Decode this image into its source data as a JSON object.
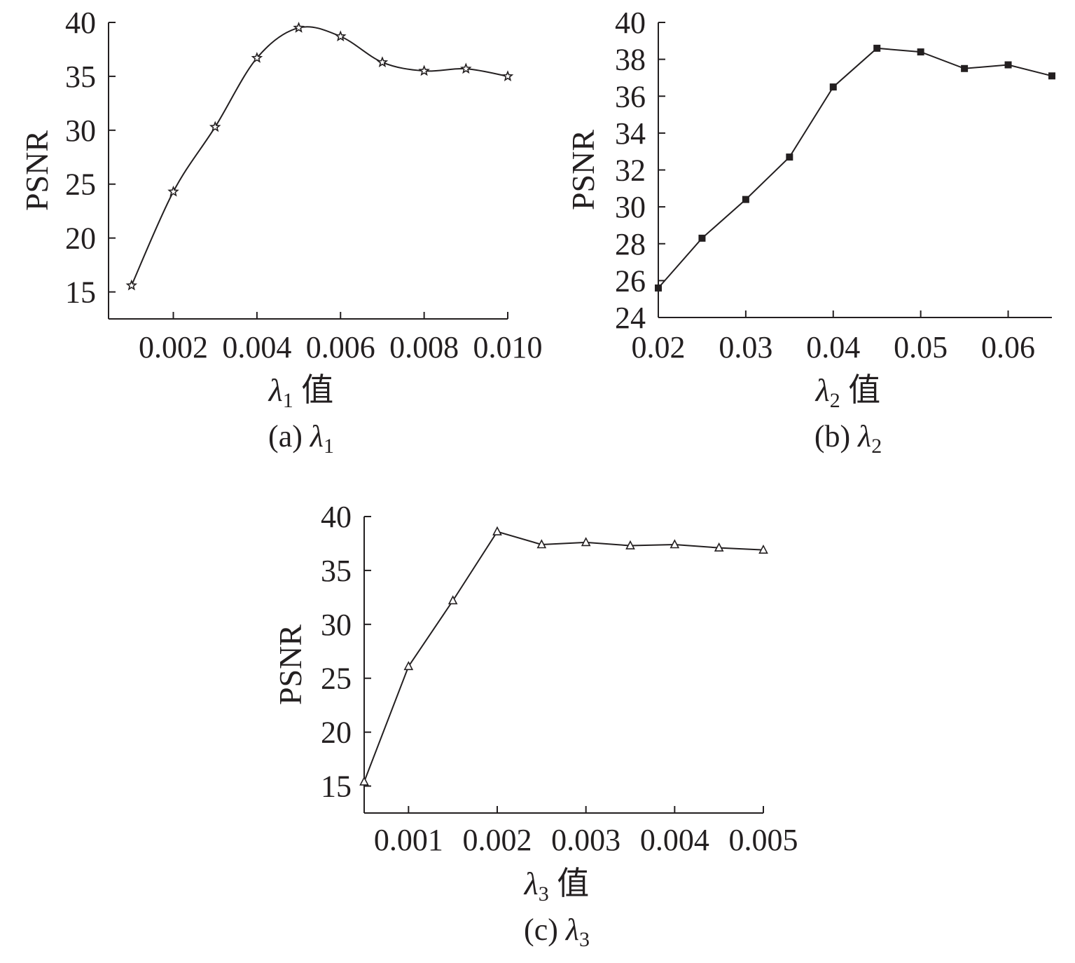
{
  "chart_data": [
    {
      "type": "line",
      "ylabel": "PSNR",
      "xlabel": {
        "symbol": "λ",
        "sub": "1",
        "suffix": " 值"
      },
      "caption": {
        "prefix": "(a) ",
        "symbol": "λ",
        "sub": "1"
      },
      "xlim": [
        0.00045,
        0.01
      ],
      "ylim": [
        12.5,
        40
      ],
      "xticks": [
        0.002,
        0.004,
        0.006,
        0.008,
        0.01
      ],
      "xtick_labels": [
        "0.002",
        "0.004",
        "0.006",
        "0.008",
        "0.010"
      ],
      "yticks": [
        15,
        20,
        25,
        30,
        35,
        40
      ],
      "ytick_labels": [
        "15",
        "20",
        "25",
        "30",
        "35",
        "40"
      ],
      "marker": "star",
      "smooth": true,
      "x": [
        0.001,
        0.002,
        0.003,
        0.004,
        0.005,
        0.006,
        0.007,
        0.008,
        0.009,
        0.01
      ],
      "y": [
        15.6,
        24.3,
        30.3,
        36.7,
        39.5,
        38.7,
        36.3,
        35.5,
        35.7,
        35.0
      ]
    },
    {
      "type": "line",
      "ylabel": "PSNR",
      "xlabel": {
        "symbol": "λ",
        "sub": "2",
        "suffix": " 值"
      },
      "caption": {
        "prefix": "(b) ",
        "symbol": "λ",
        "sub": "2"
      },
      "xlim": [
        0.02,
        0.065
      ],
      "ylim": [
        24,
        40
      ],
      "xticks": [
        0.02,
        0.03,
        0.04,
        0.05,
        0.06
      ],
      "xtick_labels": [
        "0.02",
        "0.03",
        "0.04",
        "0.05",
        "0.06"
      ],
      "yticks": [
        24,
        26,
        28,
        30,
        32,
        34,
        36,
        38,
        40
      ],
      "ytick_labels": [
        "24",
        "26",
        "28",
        "30",
        "32",
        "34",
        "36",
        "38",
        "40"
      ],
      "marker": "square",
      "smooth": false,
      "x": [
        0.02,
        0.025,
        0.03,
        0.035,
        0.04,
        0.045,
        0.05,
        0.055,
        0.06,
        0.065
      ],
      "y": [
        25.6,
        28.3,
        30.4,
        32.7,
        36.5,
        38.6,
        38.4,
        37.5,
        37.7,
        37.1
      ]
    },
    {
      "type": "line",
      "ylabel": "PSNR",
      "xlabel": {
        "symbol": "λ",
        "sub": "3",
        "suffix": " 值"
      },
      "caption": {
        "prefix": "(c) ",
        "symbol": "λ",
        "sub": "3"
      },
      "xlim": [
        0.0005,
        0.005
      ],
      "ylim": [
        12.5,
        40
      ],
      "xticks": [
        0.001,
        0.002,
        0.003,
        0.004,
        0.005
      ],
      "xtick_labels": [
        "0.001",
        "0.002",
        "0.003",
        "0.004",
        "0.005"
      ],
      "yticks": [
        15,
        20,
        25,
        30,
        35,
        40
      ],
      "ytick_labels": [
        "15",
        "20",
        "25",
        "30",
        "35",
        "40"
      ],
      "marker": "triangle",
      "smooth": false,
      "x": [
        0.0005,
        0.001,
        0.0015,
        0.002,
        0.0025,
        0.003,
        0.0035,
        0.004,
        0.0045,
        0.005
      ],
      "y": [
        15.4,
        26.1,
        32.2,
        38.6,
        37.4,
        37.6,
        37.3,
        37.4,
        37.1,
        36.9
      ]
    }
  ]
}
